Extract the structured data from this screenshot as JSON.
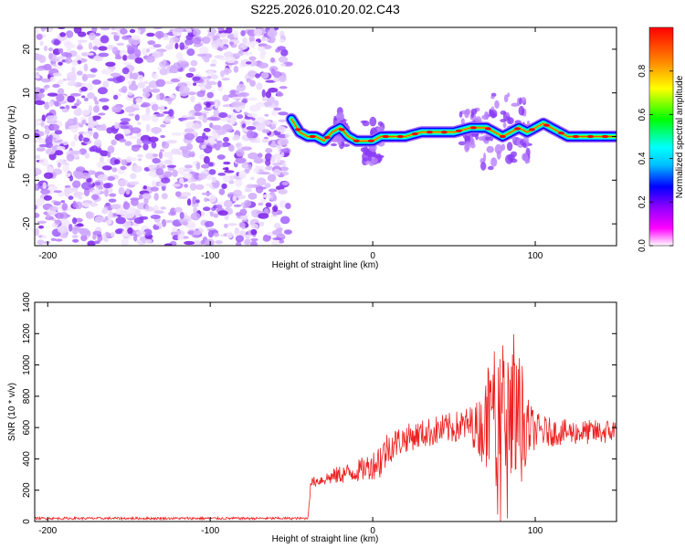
{
  "title": "S225.2026.010.20.02.C43",
  "chart_data": [
    {
      "type": "heatmap",
      "xlabel": "Height of straight line (km)",
      "ylabel": "Frequency (Hz)",
      "xlim": [
        -208,
        150
      ],
      "ylim": [
        -25,
        25
      ],
      "xticks": [
        -200,
        -100,
        0,
        100
      ],
      "yticks": [
        -20,
        -10,
        0,
        10,
        20
      ],
      "colorbar": {
        "label": "Normalized spectral amplitude",
        "range": [
          0,
          1
        ],
        "ticks": [
          "0.0",
          "0.2",
          "0.4",
          "0.6",
          "0.8"
        ],
        "colors": [
          "#ffffff",
          "#ff00ff",
          "#8800ff",
          "#0000ff",
          "#00bfff",
          "#00ffff",
          "#00ff00",
          "#ffff00",
          "#ff8000",
          "#ff0000"
        ]
      },
      "noise_region_km": [
        -208,
        -52
      ],
      "ridge": {
        "x": [
          -50,
          -45,
          -40,
          -35,
          -30,
          -25,
          -20,
          -15,
          -10,
          -5,
          0,
          5,
          10,
          20,
          30,
          40,
          50,
          60,
          70,
          75,
          80,
          85,
          90,
          95,
          100,
          105,
          110,
          115,
          120,
          130,
          140,
          150
        ],
        "y": [
          4,
          1,
          0,
          0,
          -1,
          1,
          2,
          0,
          -1,
          -1,
          -1,
          0,
          0,
          0,
          1,
          1,
          1,
          2,
          2,
          1,
          0,
          1,
          2,
          1,
          2,
          3,
          2,
          1,
          0,
          0,
          0,
          0
        ]
      }
    },
    {
      "type": "line",
      "xlabel": "Height of straight line (km)",
      "ylabel": "SNR (10 * v/v)",
      "xlim": [
        -208,
        150
      ],
      "ylim": [
        0,
        1400
      ],
      "xticks": [
        -200,
        -100,
        0,
        100
      ],
      "yticks": [
        0,
        200,
        400,
        600,
        800,
        1000,
        1200,
        1400
      ],
      "color": "#ee2020",
      "envelope": {
        "x": [
          -208,
          -50,
          -40,
          -38,
          -30,
          -20,
          -10,
          0,
          5,
          10,
          20,
          30,
          40,
          50,
          60,
          65,
          70,
          75,
          80,
          85,
          90,
          95,
          100,
          110,
          120,
          130,
          140,
          150
        ],
        "mean": [
          20,
          20,
          20,
          250,
          270,
          300,
          320,
          360,
          400,
          480,
          530,
          560,
          580,
          600,
          620,
          600,
          620,
          600,
          620,
          620,
          610,
          600,
          580,
          570,
          570,
          570,
          570,
          580
        ],
        "spread": [
          8,
          8,
          8,
          30,
          40,
          60,
          70,
          90,
          140,
          110,
          90,
          90,
          100,
          100,
          120,
          180,
          300,
          420,
          560,
          540,
          400,
          200,
          120,
          90,
          80,
          80,
          80,
          80
        ]
      }
    }
  ]
}
